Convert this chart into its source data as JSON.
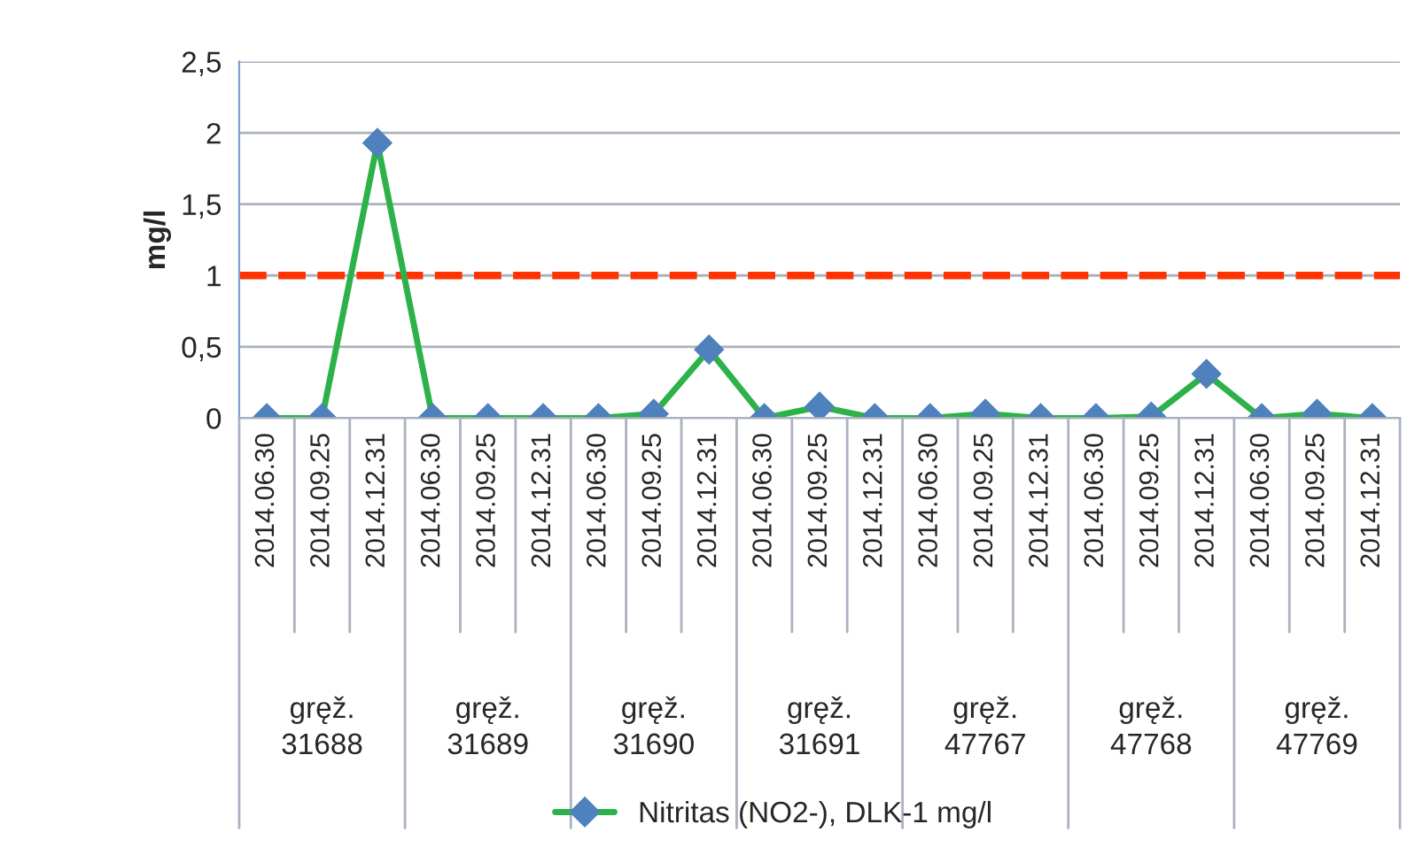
{
  "chart_data": {
    "type": "line",
    "ylabel": "mg/l",
    "categories": [
      "2014.06.30",
      "2014.09.25",
      "2014.12.31",
      "2014.06.30",
      "2014.09.25",
      "2014.12.31",
      "2014.06.30",
      "2014.09.25",
      "2014.12.31",
      "2014.06.30",
      "2014.09.25",
      "2014.12.31",
      "2014.06.30",
      "2014.09.25",
      "2014.12.31",
      "2014.06.30",
      "2014.09.25",
      "2014.12.31",
      "2014.06.30",
      "2014.09.25",
      "2014.12.31"
    ],
    "series": [
      {
        "name": "Nitritas (NO2-), DLK-1 mg/l",
        "color": "#2db24a",
        "values": [
          0,
          0,
          1.93,
          0,
          0,
          0,
          0,
          0.03,
          0.48,
          0,
          0.08,
          0,
          0,
          0.03,
          0,
          0,
          0.01,
          0.31,
          0,
          0.03,
          0
        ]
      }
    ],
    "annotations": [
      "gręž.\n31688",
      "gręž.\n31689",
      "gręž.\n31690",
      "gręž.\n31691",
      "gręž.\n47767",
      "gręž.\n47768",
      "gręž.\n47769"
    ],
    "ref_lines": [
      {
        "axis": "y",
        "value": 1,
        "color": "#ff3300",
        "line_style": "dashed"
      }
    ],
    "ylim": [
      0,
      2.5
    ],
    "yticks": [
      0,
      {
        "value": 0.5,
        "label": "0,5"
      },
      1,
      {
        "value": 1.5,
        "label": "1,5"
      },
      2,
      {
        "value": 2.5,
        "label": "2,5"
      }
    ],
    "grid": "y",
    "legend": "bottom",
    "marker": "diamond",
    "line_style": "solid"
  }
}
